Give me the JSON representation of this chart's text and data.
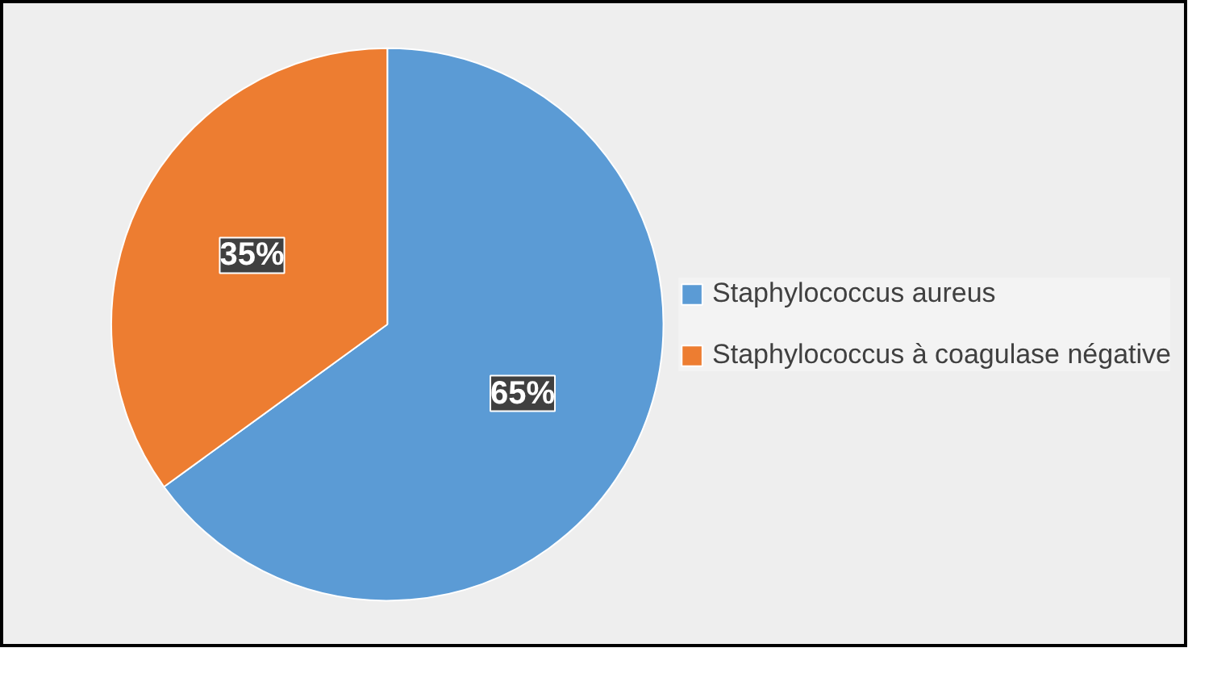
{
  "chart_data": {
    "type": "pie",
    "categories": [
      "Staphylococcus aureus",
      "Staphylococcus à coagulase négative"
    ],
    "values": [
      65,
      35
    ],
    "colors": [
      "#5b9bd5",
      "#ed7d31"
    ],
    "value_labels": [
      "65%",
      "35%"
    ],
    "legend": "right"
  }
}
